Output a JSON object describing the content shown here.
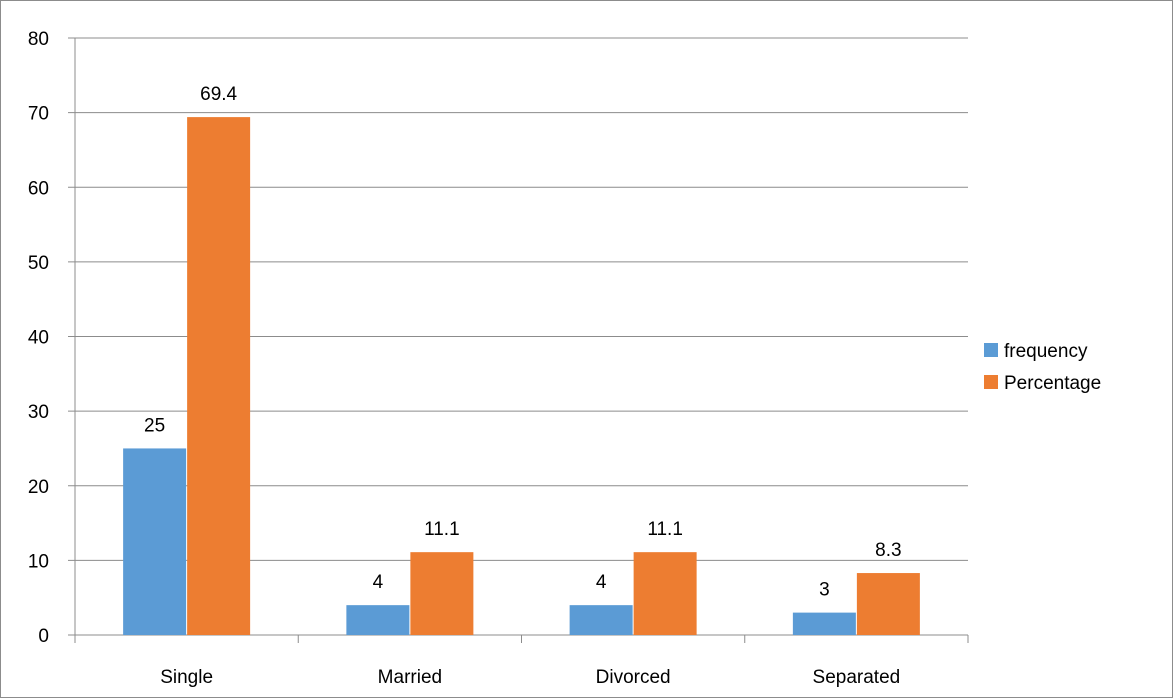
{
  "chart_data": {
    "type": "bar",
    "title": "",
    "xlabel": "",
    "ylabel": "",
    "categories": [
      "Single",
      "Married",
      "Divorced",
      "Separated"
    ],
    "series": [
      {
        "name": "frequency",
        "values": [
          25,
          4,
          4,
          3
        ],
        "color": "#5b9bd5"
      },
      {
        "name": "Percentage",
        "values": [
          69.4,
          11.1,
          11.1,
          8.3
        ],
        "color": "#ed7d31"
      }
    ],
    "data_labels": [
      [
        "25",
        "4",
        "4",
        "3"
      ],
      [
        "69.4",
        "11.1",
        "11.1",
        "8.3"
      ]
    ],
    "ylim": [
      0,
      80
    ],
    "yticks": [
      0,
      10,
      20,
      30,
      40,
      50,
      60,
      70,
      80
    ],
    "ytick_labels": [
      "0",
      "10",
      "20",
      "30",
      "40",
      "50",
      "60",
      "70",
      "80"
    ],
    "grid": true,
    "legend_position": "right",
    "gridline_color": "#8c8c8c",
    "axis_color": "#8c8c8c"
  }
}
